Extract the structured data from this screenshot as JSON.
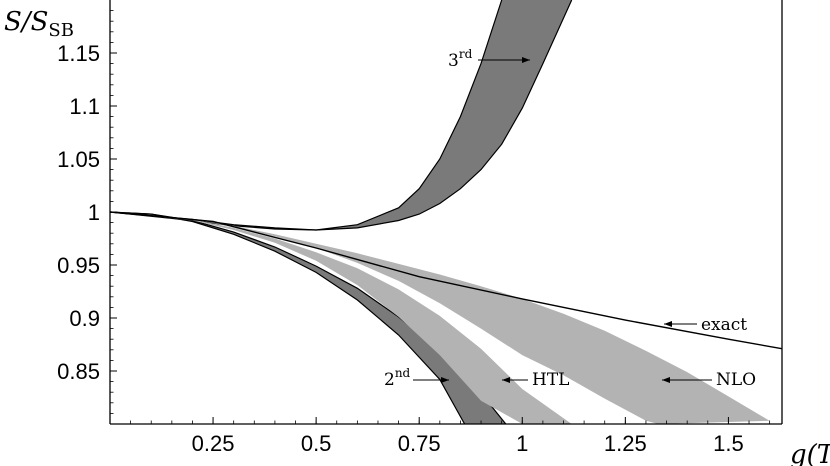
{
  "chart_data": {
    "type": "area",
    "xlabel": "g(T)",
    "ylabel": "S/S_SB",
    "xlim": [
      0,
      1.63
    ],
    "ylim": [
      0.8,
      1.2
    ],
    "x_ticks": [
      "0.25",
      "0.5",
      "0.75",
      "1",
      "1.25",
      "1.5"
    ],
    "y_ticks": [
      "0.85",
      "0.9",
      "0.95",
      "1",
      "1.05",
      "1.1",
      "1.15"
    ],
    "grid": false,
    "exact": {
      "label": "exact",
      "x": [
        0,
        0.25,
        0.5,
        0.75,
        1.0,
        1.25,
        1.5,
        1.63
      ],
      "y": [
        1.0,
        0.991,
        0.966,
        0.939,
        0.918,
        0.898,
        0.88,
        0.871
      ]
    },
    "bands": [
      {
        "label": "3rd",
        "color": "#7a7a7a",
        "upper": {
          "x": [
            0,
            0.2,
            0.3,
            0.4,
            0.5,
            0.6,
            0.7,
            0.75,
            0.8,
            0.85,
            0.9,
            0.95
          ],
          "y": [
            1.0,
            0.992,
            0.987,
            0.984,
            0.983,
            0.988,
            1.004,
            1.022,
            1.05,
            1.09,
            1.14,
            1.2
          ]
        },
        "lower": {
          "x": [
            0,
            0.2,
            0.3,
            0.4,
            0.5,
            0.6,
            0.7,
            0.75,
            0.8,
            0.85,
            0.9,
            0.95,
            1.0,
            1.05,
            1.12
          ],
          "y": [
            1.0,
            0.993,
            0.988,
            0.985,
            0.983,
            0.985,
            0.992,
            0.998,
            1.008,
            1.022,
            1.04,
            1.064,
            1.098,
            1.14,
            1.2
          ]
        }
      },
      {
        "label": "2nd",
        "color": "#7a7a7a",
        "upper": {
          "x": [
            0,
            0.1,
            0.2,
            0.3,
            0.4,
            0.5,
            0.6,
            0.7,
            0.8,
            0.9,
            0.96
          ],
          "y": [
            1.0,
            0.998,
            0.992,
            0.981,
            0.967,
            0.949,
            0.928,
            0.901,
            0.869,
            0.829,
            0.8
          ]
        },
        "lower": {
          "x": [
            0,
            0.1,
            0.2,
            0.3,
            0.4,
            0.5,
            0.6,
            0.7,
            0.8,
            0.86
          ],
          "y": [
            1.0,
            0.998,
            0.991,
            0.979,
            0.963,
            0.943,
            0.917,
            0.884,
            0.842,
            0.8
          ]
        }
      },
      {
        "label": "HTL",
        "color": "#b3b3b3",
        "upper": {
          "x": [
            0,
            0.2,
            0.3,
            0.4,
            0.5,
            0.6,
            0.7,
            0.8,
            0.9,
            1.0,
            1.12
          ],
          "y": [
            1.0,
            0.993,
            0.985,
            0.975,
            0.962,
            0.947,
            0.927,
            0.902,
            0.871,
            0.833,
            0.8
          ]
        },
        "lower": {
          "x": [
            0,
            0.2,
            0.3,
            0.4,
            0.5,
            0.6,
            0.7,
            0.8,
            0.9,
            1.0
          ],
          "y": [
            1.0,
            0.992,
            0.983,
            0.971,
            0.954,
            0.931,
            0.901,
            0.865,
            0.822,
            0.8
          ]
        }
      },
      {
        "label": "NLO",
        "color": "#b3b3b3",
        "upper": {
          "x": [
            0,
            0.2,
            0.3,
            0.4,
            0.5,
            0.6,
            0.7,
            0.8,
            0.9,
            1.0,
            1.1,
            1.2,
            1.3,
            1.4,
            1.5,
            1.6
          ],
          "y": [
            1.0,
            0.993,
            0.987,
            0.979,
            0.97,
            0.961,
            0.951,
            0.941,
            0.93,
            0.918,
            0.904,
            0.888,
            0.869,
            0.849,
            0.826,
            0.803
          ]
        },
        "lower": {
          "x": [
            0,
            0.2,
            0.3,
            0.4,
            0.5,
            0.6,
            0.7,
            0.8,
            0.9,
            1.0,
            1.1,
            1.2,
            1.3,
            1.33
          ],
          "y": [
            1.0,
            0.993,
            0.986,
            0.977,
            0.966,
            0.952,
            0.935,
            0.914,
            0.89,
            0.865,
            0.846,
            0.824,
            0.803,
            0.8
          ]
        }
      }
    ],
    "annotations": [
      {
        "text": "3",
        "sup": "rd",
        "band": "3rd"
      },
      {
        "text": "2",
        "sup": "nd",
        "band": "2nd"
      },
      {
        "text": "HTL",
        "sup": "",
        "band": "HTL"
      },
      {
        "text": "NLO",
        "sup": "",
        "band": "NLO"
      },
      {
        "text": "exact",
        "sup": "",
        "band": "exact"
      }
    ]
  }
}
